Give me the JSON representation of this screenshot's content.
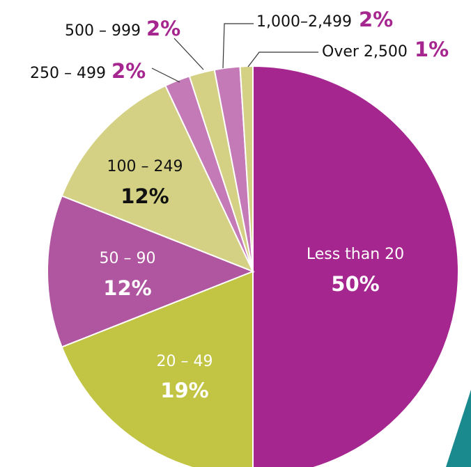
{
  "chart_data": {
    "type": "pie",
    "categories": [
      "Less than 20",
      "20 – 49",
      "50 – 90",
      "100 – 249",
      "250 – 499",
      "500 – 999",
      "1,000–2,499",
      "Over 2,500"
    ],
    "values": [
      50,
      19,
      12,
      12,
      2,
      2,
      2,
      1
    ],
    "value_labels": [
      "50%",
      "19%",
      "12%",
      "12%",
      "2%",
      "2%",
      "2%",
      "1%"
    ],
    "colors": [
      "#a6268f",
      "#c2c443",
      "#b0559f",
      "#d4d184",
      "#c57ab8",
      "#d4d184",
      "#c57ab8",
      "#d4d184"
    ]
  }
}
